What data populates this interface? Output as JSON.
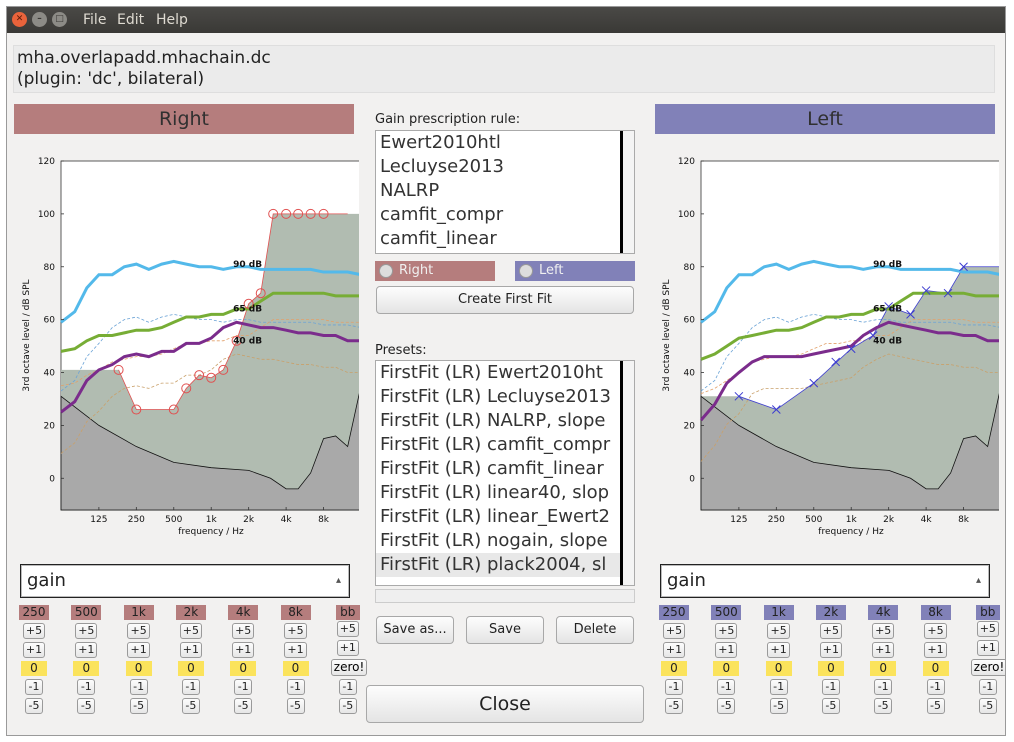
{
  "menu": {
    "file": "File",
    "edit": "Edit",
    "help": "Help"
  },
  "info": {
    "line1": "mha.overlapadd.mhachain.dc",
    "line2": "(plugin: 'dc', bilateral)"
  },
  "colors": {
    "right": "#b57d7d",
    "left": "#8181b8",
    "zero": "#fbe35c",
    "curve90": "#53b9ea",
    "curve65": "#77ad35",
    "curve40": "#7b2c8c",
    "fill": "#b1bcb1",
    "threshold_fill": "#a9a9a9"
  },
  "right": {
    "header": "Right",
    "combo_value": "gain",
    "bands": [
      "250",
      "500",
      "1k",
      "2k",
      "4k",
      "8k"
    ],
    "bb_label": "bb",
    "plus5": "+5",
    "plus1": "+1",
    "zero_value": "0",
    "zero_btn": "zero!",
    "minus1": "-1",
    "minus5": "-5"
  },
  "left": {
    "header": "Left",
    "combo_value": "gain",
    "bands": [
      "250",
      "500",
      "1k",
      "2k",
      "4k",
      "8k"
    ],
    "bb_label": "bb",
    "plus5": "+5",
    "plus1": "+1",
    "zero_value": "0",
    "zero_btn": "zero!",
    "minus1": "-1",
    "minus5": "-5"
  },
  "center": {
    "rule_label": "Gain prescription rule:",
    "rules": [
      "Ewert2010htl",
      "Lecluyse2013",
      "NALRP",
      "camfit_compr",
      "camfit_linear"
    ],
    "radio_right": "Right",
    "radio_left": "Left",
    "create_first_fit": "Create First Fit",
    "presets_label": "Presets:",
    "presets": [
      "FirstFit (LR) Ewert2010ht",
      "FirstFit (LR) Lecluyse2013",
      "FirstFit (LR) NALRP, slope",
      "FirstFit (LR) camfit_compr",
      "FirstFit (LR) camfit_linear",
      "FirstFit (LR) linear40, slop",
      "FirstFit (LR) linear_Ewert2",
      "FirstFit (LR) nogain, slope",
      "FirstFit (LR) plack2004, sl"
    ],
    "selected_preset_index": 8,
    "save_as": "Save as...",
    "save": "Save",
    "delete": "Delete",
    "close": "Close"
  },
  "chart_data": [
    {
      "type": "line",
      "panel": "Right",
      "xlabel": "frequency / Hz",
      "ylabel": "3rd octave level / dB SPL",
      "xscale": "log",
      "xlim": [
        62,
        16000
      ],
      "ylim": [
        -12,
        120
      ],
      "xticks": [
        125,
        250,
        500,
        1000,
        2000,
        4000,
        8000
      ],
      "xticklabels": [
        "125",
        "250",
        "500",
        "1k",
        "2k",
        "4k",
        "8k"
      ],
      "yticks": [
        0,
        20,
        40,
        60,
        80,
        100,
        120
      ],
      "annotations": [
        {
          "text": "90 dB",
          "x": 1500,
          "y": 80
        },
        {
          "text": "65 dB",
          "x": 1500,
          "y": 63
        },
        {
          "text": "40 dB",
          "x": 1500,
          "y": 51
        }
      ],
      "hearing_threshold": {
        "x": [
          180,
          250,
          500,
          630,
          800,
          1000,
          1250,
          1600,
          2000,
          2500,
          3150,
          4000,
          5000,
          6300,
          8000,
          10000,
          12500
        ],
        "y": [
          41,
          26,
          26,
          34,
          39,
          38,
          41,
          52,
          66,
          70,
          100,
          100,
          100,
          100,
          100,
          100,
          100
        ]
      },
      "threshold_points": {
        "x": [
          180,
          250,
          500,
          630,
          800,
          1000,
          1250,
          1600,
          2000,
          2500,
          3150,
          4000,
          5000,
          6300,
          8000
        ],
        "y": [
          41,
          26,
          26,
          34,
          39,
          38,
          41,
          52,
          66,
          70,
          100,
          100,
          100,
          100,
          100
        ]
      },
      "series": [
        {
          "name": "90 dB",
          "x": [
            62,
            80,
            100,
            125,
            160,
            200,
            250,
            315,
            400,
            500,
            630,
            800,
            1000,
            1250,
            1600,
            2000,
            2500,
            3150,
            4000,
            5000,
            6300,
            8000,
            10000,
            12500,
            16000
          ],
          "y": [
            59,
            63,
            72,
            77,
            77,
            80,
            81,
            79,
            81,
            82,
            81,
            80,
            80,
            79,
            80,
            80,
            79,
            79,
            79,
            79,
            79,
            78,
            78,
            78,
            77
          ]
        },
        {
          "name": "65 dB",
          "x": [
            62,
            80,
            100,
            125,
            160,
            200,
            250,
            315,
            400,
            500,
            630,
            800,
            1000,
            1250,
            1600,
            2000,
            2500,
            3150,
            4000,
            5000,
            6300,
            8000,
            10000,
            12500,
            16000
          ],
          "y": [
            48,
            49,
            52,
            54,
            54,
            55,
            56,
            56,
            57,
            59,
            61,
            61,
            62,
            62,
            64,
            64,
            67,
            70,
            70,
            70,
            70,
            70,
            69,
            69,
            69
          ]
        },
        {
          "name": "40 dB",
          "x": [
            62,
            80,
            100,
            125,
            160,
            200,
            250,
            315,
            400,
            500,
            630,
            800,
            1000,
            1250,
            1600,
            2000,
            2500,
            3150,
            4000,
            5000,
            6300,
            8000,
            10000,
            12500,
            16000
          ],
          "y": [
            25,
            29,
            37,
            41,
            43,
            46,
            47,
            46,
            48,
            48,
            51,
            51,
            53,
            57,
            59,
            58,
            57,
            57,
            56,
            55,
            55,
            54,
            54,
            52,
            52
          ]
        }
      ]
    },
    {
      "type": "line",
      "panel": "Left",
      "xlabel": "frequency / Hz",
      "ylabel": "3rd octave level / dB SPL",
      "xscale": "log",
      "xlim": [
        62,
        16000
      ],
      "ylim": [
        -12,
        120
      ],
      "xticks": [
        125,
        250,
        500,
        1000,
        2000,
        4000,
        8000
      ],
      "xticklabels": [
        "125",
        "250",
        "500",
        "1k",
        "2k",
        "4k",
        "8k"
      ],
      "yticks": [
        0,
        20,
        40,
        60,
        80,
        100,
        120
      ],
      "annotations": [
        {
          "text": "90 dB",
          "x": 1500,
          "y": 80
        },
        {
          "text": "65 dB",
          "x": 1500,
          "y": 63
        },
        {
          "text": "40 dB",
          "x": 1500,
          "y": 51
        }
      ],
      "hearing_threshold": {
        "x": [
          125,
          250,
          500,
          1000,
          1500,
          2000,
          3000,
          4000,
          6000,
          8000,
          10000,
          12500,
          16000
        ],
        "y": [
          31,
          26,
          36,
          49,
          54,
          65,
          62,
          71,
          70,
          80,
          80,
          80,
          80
        ]
      },
      "threshold_points": {
        "x": [
          125,
          250,
          500,
          750,
          1000,
          1500,
          2000,
          3000,
          4000,
          6000,
          8000
        ],
        "y": [
          31,
          26,
          36,
          44,
          49,
          54,
          65,
          62,
          71,
          70,
          80
        ]
      },
      "series": [
        {
          "name": "90 dB",
          "x": [
            62,
            80,
            100,
            125,
            160,
            200,
            250,
            315,
            400,
            500,
            630,
            800,
            1000,
            1250,
            1600,
            2000,
            2500,
            3150,
            4000,
            5000,
            6300,
            8000,
            10000,
            12500,
            16000
          ],
          "y": [
            59,
            63,
            72,
            77,
            77,
            80,
            81,
            79,
            81,
            82,
            81,
            80,
            80,
            79,
            80,
            80,
            79,
            79,
            79,
            79,
            79,
            78,
            78,
            78,
            77
          ]
        },
        {
          "name": "65 dB",
          "x": [
            62,
            80,
            100,
            125,
            160,
            200,
            250,
            315,
            400,
            500,
            630,
            800,
            1000,
            1250,
            1600,
            2000,
            2500,
            3150,
            4000,
            5000,
            6300,
            8000,
            10000,
            12500,
            16000
          ],
          "y": [
            45,
            47,
            50,
            53,
            54,
            55,
            56,
            56,
            57,
            59,
            61,
            61,
            62,
            62,
            64,
            64,
            67,
            70,
            70,
            70,
            70,
            70,
            69,
            69,
            69
          ]
        },
        {
          "name": "40 dB",
          "x": [
            62,
            80,
            100,
            125,
            160,
            200,
            250,
            315,
            400,
            500,
            630,
            800,
            1000,
            1250,
            1600,
            2000,
            2500,
            3150,
            4000,
            5000,
            6300,
            8000,
            10000,
            12500,
            16000
          ],
          "y": [
            22,
            28,
            36,
            40,
            44,
            46,
            46,
            46,
            46,
            47,
            48,
            49,
            50,
            54,
            57,
            59,
            58,
            57,
            56,
            55,
            55,
            54,
            54,
            52,
            52
          ]
        }
      ]
    }
  ]
}
